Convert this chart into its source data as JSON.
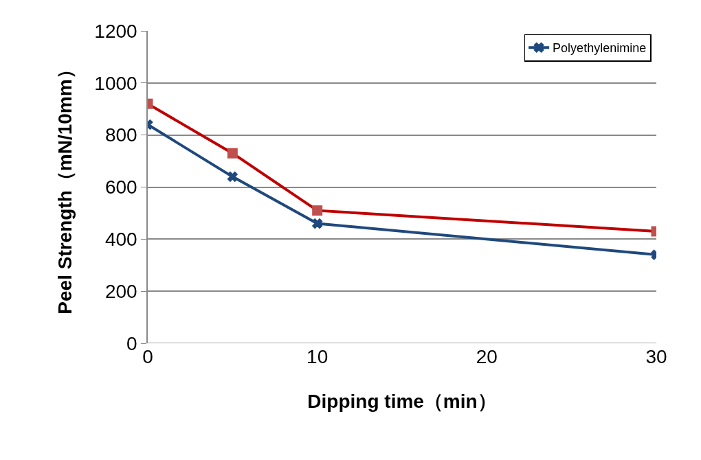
{
  "chart_data": {
    "type": "line",
    "xlabel": "Dipping time（min）",
    "ylabel": "Peel Strength（mN/10mm）",
    "x": [
      0,
      5,
      10,
      30
    ],
    "series": [
      {
        "color": "#c00000",
        "marker": "square",
        "values": [
          920,
          730,
          510,
          430
        ]
      },
      {
        "name": "Polyethylenimine",
        "color": "#1f497d",
        "marker": "cross",
        "values": [
          840,
          640,
          460,
          340
        ]
      }
    ],
    "xlim": [
      0,
      30
    ],
    "xticks": [
      0,
      10,
      20,
      30
    ],
    "ylim": [
      0,
      1200
    ],
    "yticks": [
      0,
      200,
      400,
      600,
      800,
      1000,
      1200
    ],
    "grid": "y",
    "legend": "top right",
    "line_style": "solid"
  }
}
